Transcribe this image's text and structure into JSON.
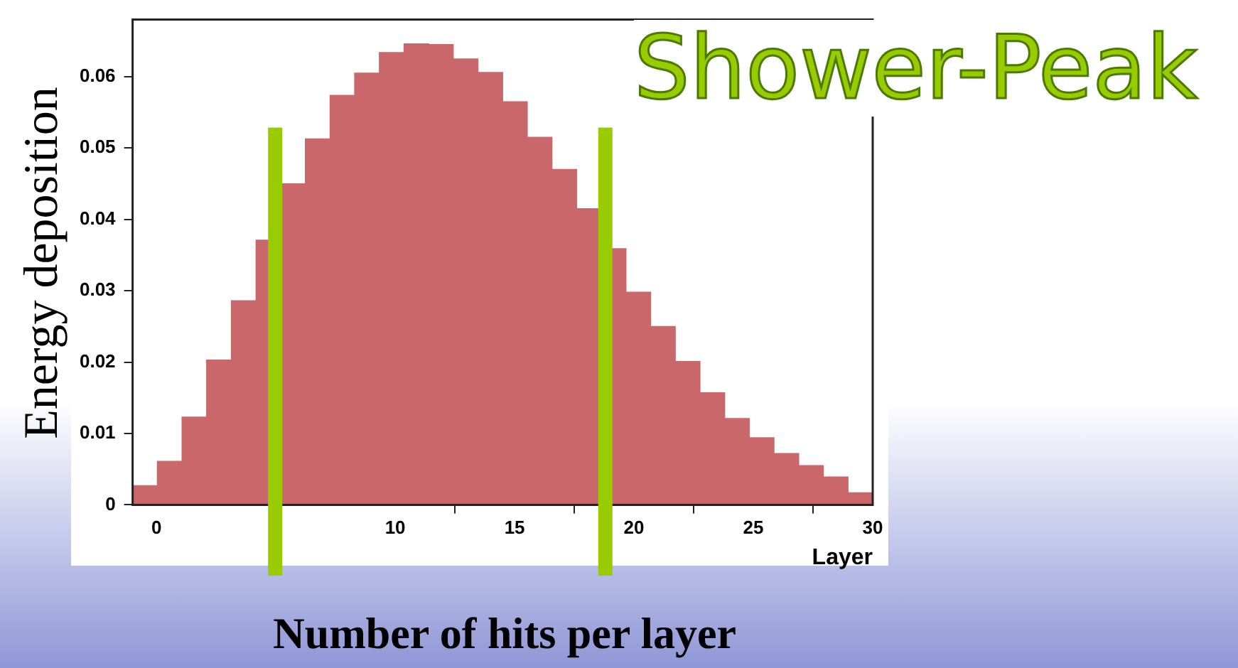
{
  "chart_data": {
    "type": "histogram",
    "title": "Number of hits per layer",
    "xlabel": "Layer",
    "ylabel": "Energy deposition",
    "annotations": [
      "Shower-Peak"
    ],
    "bins": [
      -1,
      0.03,
      1.07,
      2.1,
      3.13,
      4.17,
      5.2,
      6.23,
      7.27,
      8.3,
      9.33,
      10.37,
      11.4,
      12.43,
      13.47,
      14.5,
      15.53,
      16.57,
      17.6,
      18.63,
      19.67,
      20.7,
      21.73,
      22.77,
      23.8,
      24.83,
      25.87,
      26.9,
      27.93,
      28.97,
      30
    ],
    "values": [
      0.0027,
      0.0061,
      0.0123,
      0.0203,
      0.0286,
      0.0371,
      0.045,
      0.0513,
      0.0574,
      0.0605,
      0.0634,
      0.0646,
      0.0645,
      0.0625,
      0.0606,
      0.0565,
      0.0515,
      0.047,
      0.0415,
      0.0359,
      0.0298,
      0.025,
      0.0201,
      0.0157,
      0.0121,
      0.0094,
      0.0072,
      0.0055,
      0.0039,
      0.0017
    ],
    "color": "#c9676a",
    "xlim": [
      -1,
      30
    ],
    "xticks": [
      0,
      10,
      15,
      20,
      25,
      30
    ],
    "ylim": [
      0,
      0.068
    ],
    "yticks": [
      0,
      0.01,
      0.02,
      0.03,
      0.04,
      0.05,
      0.06
    ],
    "grid": false,
    "legend": false,
    "ref_lines": [
      {
        "axis": "x",
        "value": 4.97,
        "color": "#99cc00"
      },
      {
        "axis": "x",
        "value": 18.8,
        "color": "#99cc00"
      }
    ]
  }
}
